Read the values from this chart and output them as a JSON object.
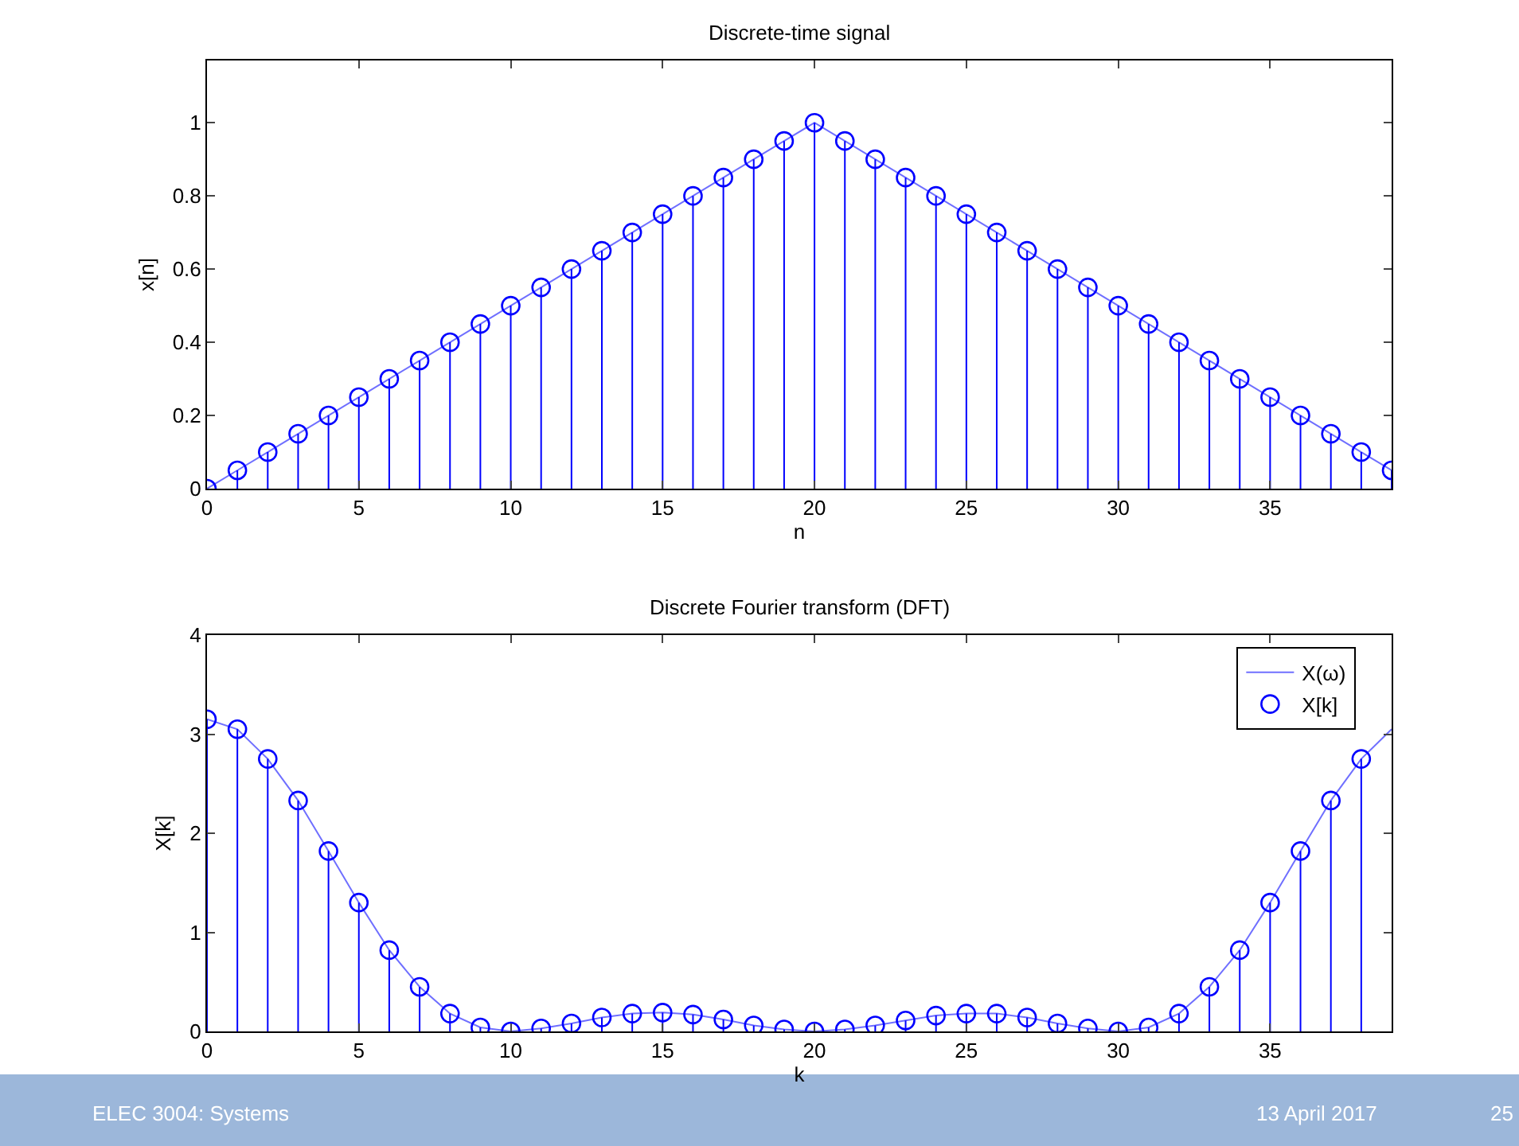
{
  "chart_data": [
    {
      "type": "lollipop",
      "title": "Discrete-time signal",
      "xlabel": "n",
      "ylabel": "x[n]",
      "x": [
        0,
        1,
        2,
        3,
        4,
        5,
        6,
        7,
        8,
        9,
        10,
        11,
        12,
        13,
        14,
        15,
        16,
        17,
        18,
        19,
        20,
        21,
        22,
        23,
        24,
        25,
        26,
        27,
        28,
        29,
        30,
        31,
        32,
        33,
        34,
        35,
        36,
        37,
        38,
        39
      ],
      "series": [
        {
          "type": "line",
          "color": "#6f6fff",
          "line_style": "solid",
          "marker": "none",
          "values": [
            0,
            0.05,
            0.1,
            0.15,
            0.2,
            0.25,
            0.3,
            0.35,
            0.4,
            0.45,
            0.5,
            0.55,
            0.6,
            0.65,
            0.7,
            0.75,
            0.8,
            0.85,
            0.9,
            0.95,
            1,
            0.95,
            0.9,
            0.85,
            0.8,
            0.75,
            0.7,
            0.65,
            0.6,
            0.55,
            0.5,
            0.45,
            0.4,
            0.35,
            0.3,
            0.25,
            0.2,
            0.15,
            0.1,
            0.05
          ]
        },
        {
          "color": "#0000ff",
          "marker": "circle",
          "values": [
            0,
            0.05,
            0.1,
            0.15,
            0.2,
            0.25,
            0.3,
            0.35,
            0.4,
            0.45,
            0.5,
            0.55,
            0.6,
            0.65,
            0.7,
            0.75,
            0.8,
            0.85,
            0.9,
            0.95,
            1,
            0.95,
            0.9,
            0.85,
            0.8,
            0.75,
            0.7,
            0.65,
            0.6,
            0.55,
            0.5,
            0.45,
            0.4,
            0.35,
            0.3,
            0.25,
            0.2,
            0.15,
            0.1,
            0.05
          ]
        }
      ],
      "xlim": [
        0,
        39
      ],
      "ylim": [
        0,
        1.17
      ],
      "xticks": [
        0,
        5,
        10,
        15,
        20,
        25,
        30,
        35
      ],
      "yticks": [
        0,
        0.2,
        0.4,
        0.6,
        0.8,
        1
      ],
      "legend": false
    },
    {
      "type": "lollipop",
      "title": "Discrete Fourier transform (DFT)",
      "xlabel": "k",
      "ylabel": "X[k]",
      "series": [
        {
          "name": "X(ω)",
          "type": "line",
          "color": "#6f6fff",
          "line_style": "solid",
          "marker": "none",
          "x": [
            0,
            1,
            2,
            3,
            4,
            5,
            6,
            7,
            8,
            9,
            10,
            11,
            12,
            13,
            14,
            15,
            16,
            17,
            18,
            19,
            20,
            21,
            22,
            23,
            24,
            25,
            26,
            27,
            28,
            29,
            30,
            31,
            32,
            33,
            34,
            35,
            36,
            37,
            38,
            39
          ],
          "values": [
            3.15,
            3.05,
            2.75,
            2.33,
            1.82,
            1.3,
            0.82,
            0.45,
            0.18,
            0.04,
            0,
            0.03,
            0.08,
            0.14,
            0.18,
            0.19,
            0.17,
            0.12,
            0.06,
            0.02,
            0,
            0.02,
            0.06,
            0.11,
            0.16,
            0.18,
            0.18,
            0.14,
            0.08,
            0.03,
            0,
            0.04,
            0.18,
            0.45,
            0.82,
            1.3,
            1.82,
            2.33,
            2.75,
            3.05
          ]
        },
        {
          "name": "X[k]",
          "color": "#0000ff",
          "marker": "circle",
          "x": [
            0,
            1,
            2,
            3,
            4,
            5,
            6,
            7,
            8,
            9,
            10,
            11,
            12,
            13,
            14,
            15,
            16,
            17,
            18,
            19,
            20,
            21,
            22,
            23,
            24,
            25,
            26,
            27,
            28,
            29,
            30,
            31,
            32,
            33,
            34,
            35,
            36,
            37,
            38
          ],
          "values": [
            3.15,
            3.05,
            2.75,
            2.33,
            1.82,
            1.3,
            0.82,
            0.45,
            0.18,
            0.04,
            0,
            0.03,
            0.08,
            0.14,
            0.18,
            0.19,
            0.17,
            0.12,
            0.06,
            0.02,
            0,
            0.02,
            0.06,
            0.11,
            0.16,
            0.18,
            0.18,
            0.14,
            0.08,
            0.03,
            0,
            0.04,
            0.18,
            0.45,
            0.82,
            1.3,
            1.82,
            2.33,
            2.75
          ]
        }
      ],
      "xlim": [
        0,
        39
      ],
      "ylim": [
        0,
        4
      ],
      "xticks": [
        0,
        5,
        10,
        15,
        20,
        25,
        30,
        35
      ],
      "yticks": [
        0,
        1,
        2,
        3,
        4
      ],
      "legend": "top right",
      "annotations": [
        "ELEC 3004: Systems",
        "13 April 2017",
        "25"
      ]
    }
  ]
}
